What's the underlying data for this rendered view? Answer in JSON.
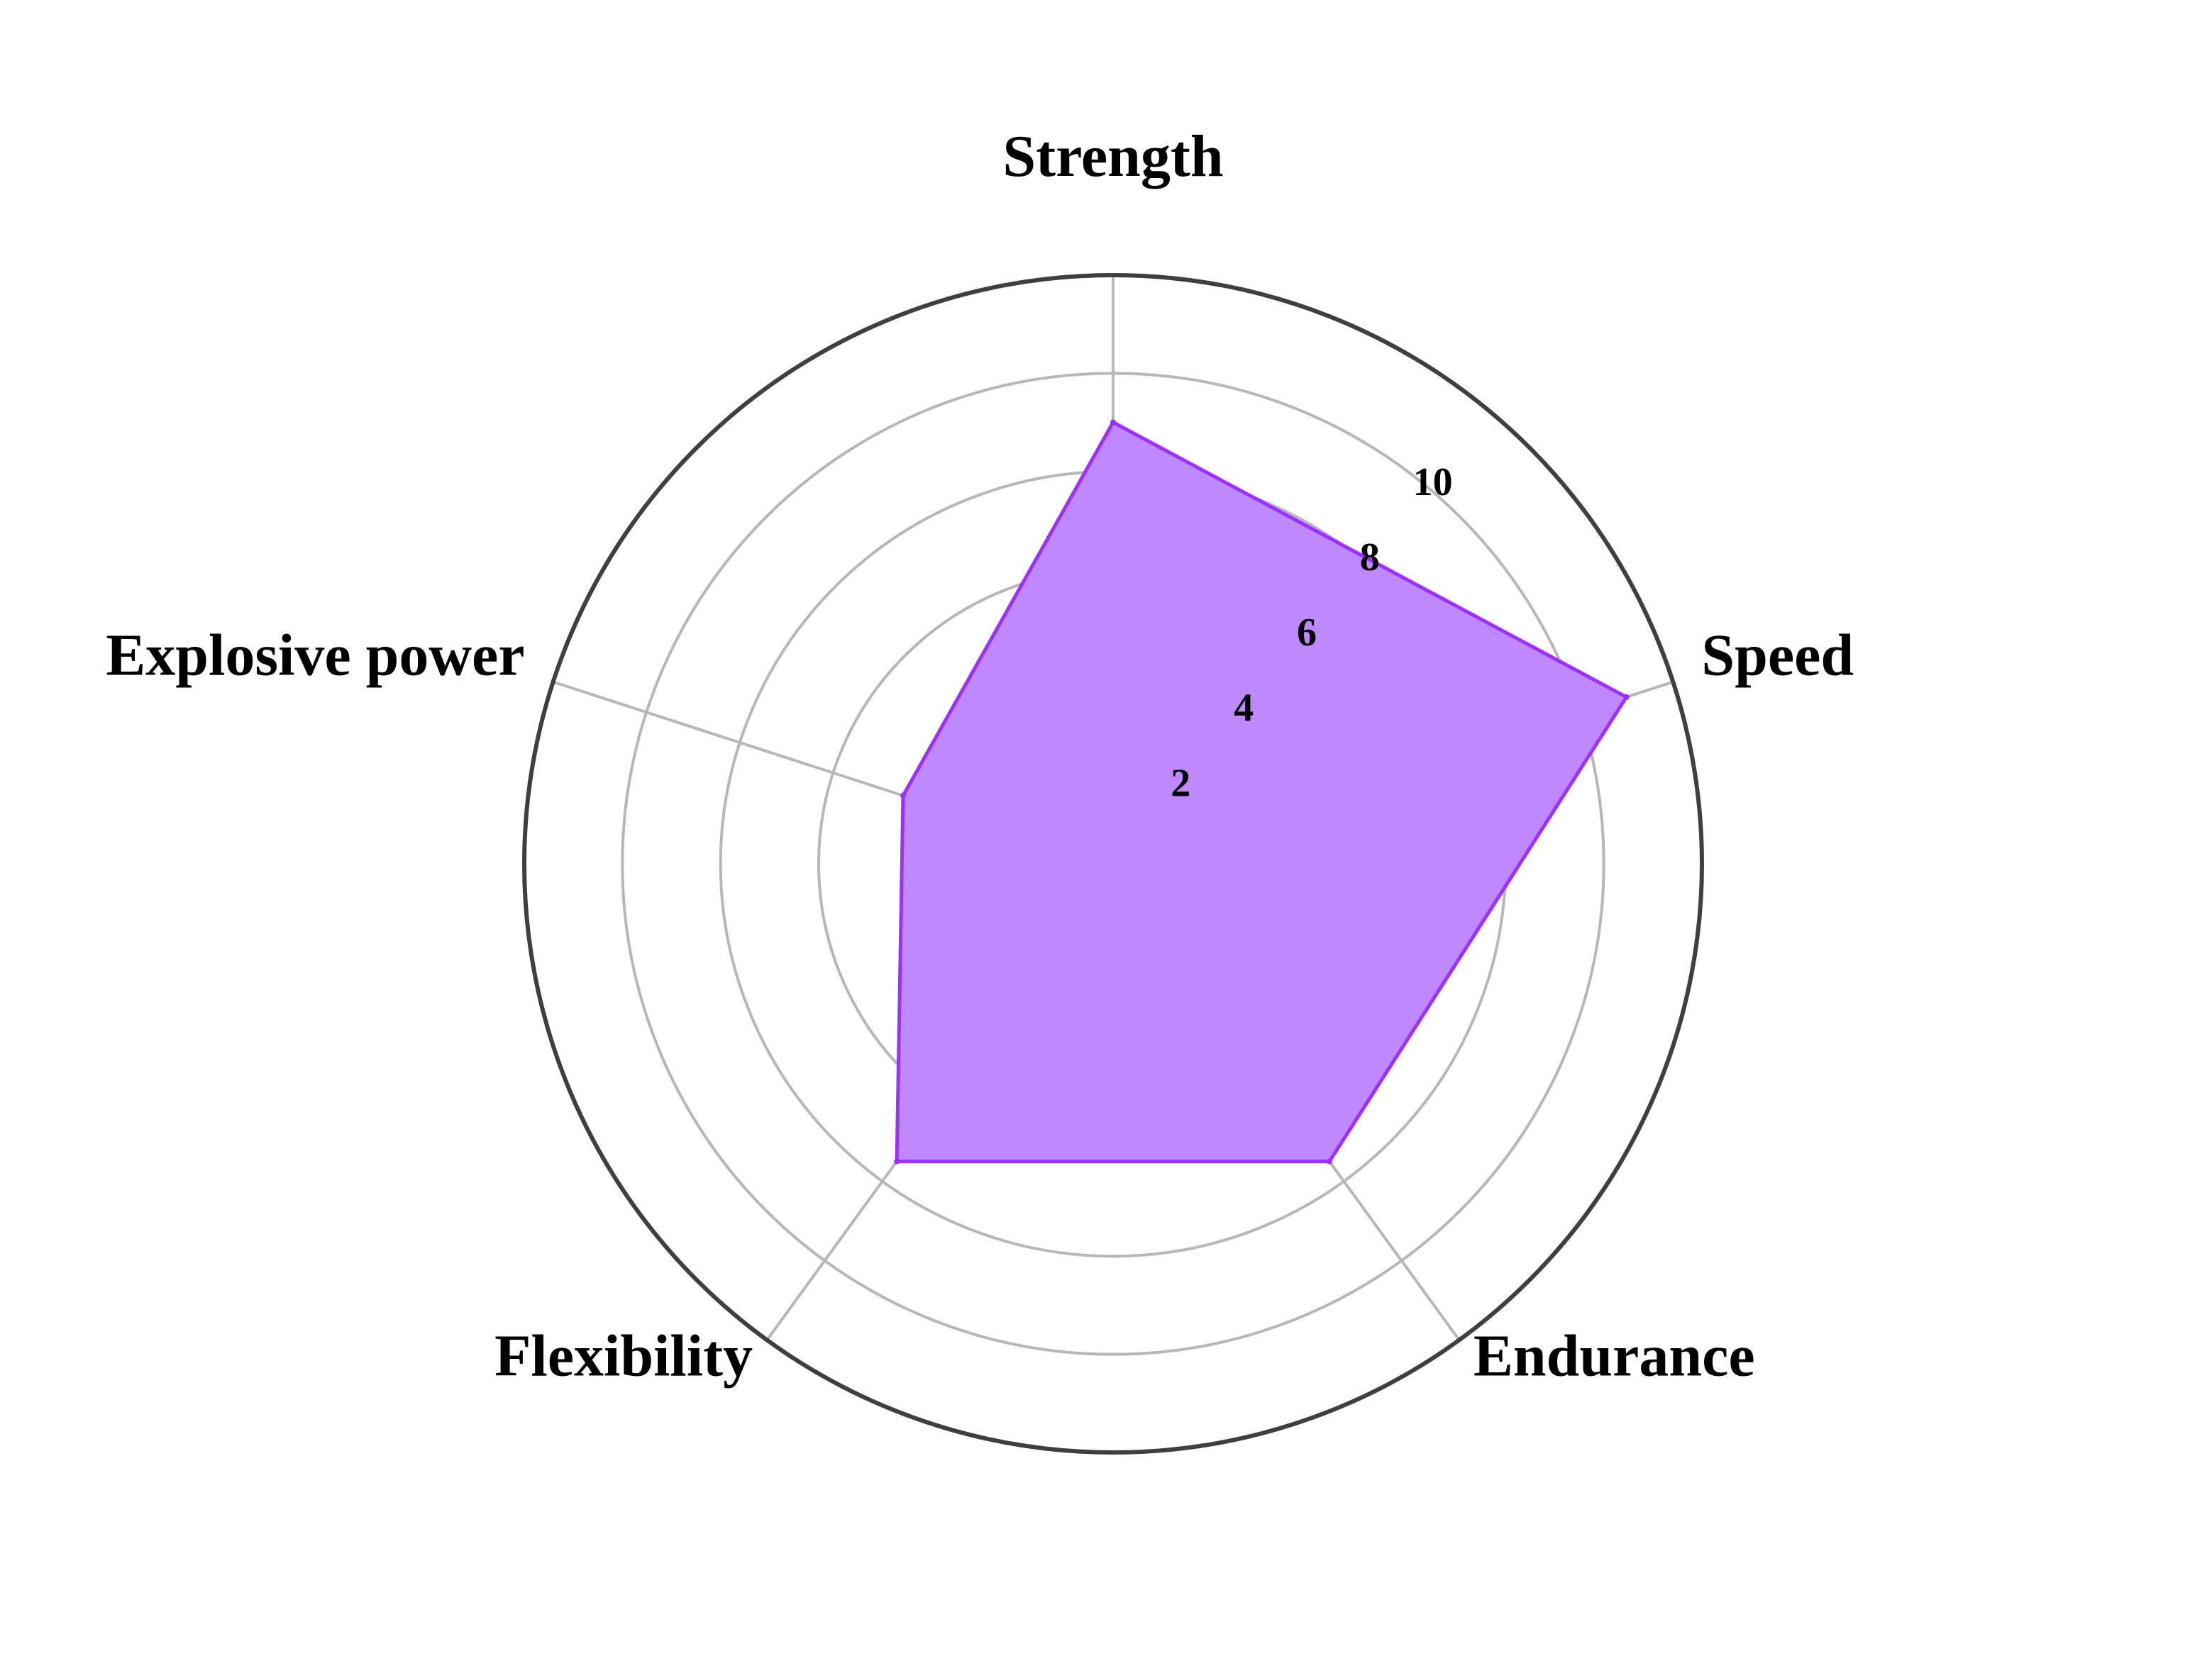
{
  "chart_data": {
    "type": "radar",
    "categories": [
      "Strength",
      "Speed",
      "Endurance",
      "Flexibility",
      "Explosive power"
    ],
    "series": [
      {
        "values": [
          9,
          11,
          7.5,
          7.5,
          4.5
        ]
      }
    ],
    "rlim": [
      0,
      12
    ],
    "rticks": [
      2,
      4,
      6,
      8,
      10
    ],
    "grid": true,
    "legend": "none",
    "colors": {
      "fill": "#bf88fc",
      "line": "#9b30ff",
      "grid": "#b7b7b7",
      "outer": "#3f3f3f"
    }
  }
}
